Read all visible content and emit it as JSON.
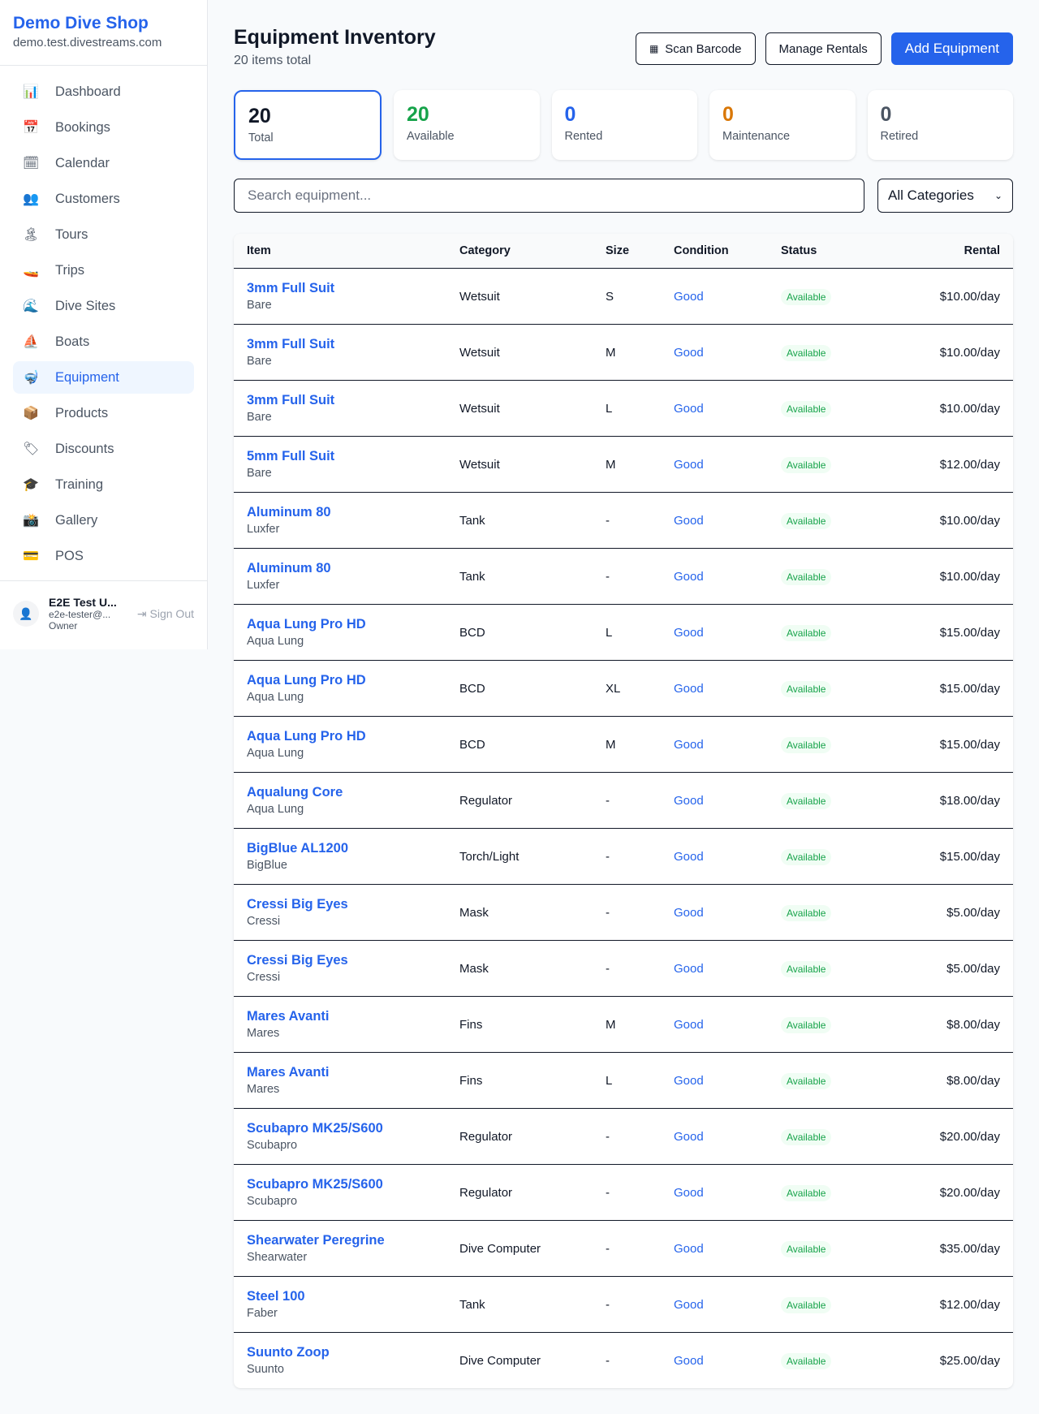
{
  "sidebar": {
    "brand": "Demo Dive Shop",
    "domain": "demo.test.divestreams.com",
    "items": [
      {
        "icon": "📊",
        "label": "Dashboard"
      },
      {
        "icon": "📅",
        "label": "Bookings"
      },
      {
        "icon": "🗓",
        "label": "Calendar"
      },
      {
        "icon": "👥",
        "label": "Customers"
      },
      {
        "icon": "🏝",
        "label": "Tours"
      },
      {
        "icon": "🚤",
        "label": "Trips"
      },
      {
        "icon": "🌊",
        "label": "Dive Sites"
      },
      {
        "icon": "⛵",
        "label": "Boats"
      },
      {
        "icon": "🤿",
        "label": "Equipment",
        "active": true
      },
      {
        "icon": "📦",
        "label": "Products"
      },
      {
        "icon": "🏷",
        "label": "Discounts"
      },
      {
        "icon": "🎓",
        "label": "Training"
      },
      {
        "icon": "📸",
        "label": "Gallery"
      },
      {
        "icon": "💳",
        "label": "POS"
      }
    ],
    "user": {
      "name": "E2E Test U...",
      "email": "e2e-tester@...",
      "role": "Owner",
      "sign_out": "Sign Out"
    }
  },
  "header": {
    "title": "Equipment Inventory",
    "subtitle": "20 items total",
    "scan": "Scan Barcode",
    "manage": "Manage Rentals",
    "add": "Add Equipment"
  },
  "stats": [
    {
      "value": "20",
      "label": "Total",
      "color": "#111827"
    },
    {
      "value": "20",
      "label": "Available",
      "color": "#16a34a"
    },
    {
      "value": "0",
      "label": "Rented",
      "color": "#2563eb"
    },
    {
      "value": "0",
      "label": "Maintenance",
      "color": "#d97706"
    },
    {
      "value": "0",
      "label": "Retired",
      "color": "#4b5563"
    }
  ],
  "filters": {
    "search_placeholder": "Search equipment...",
    "category": "All Categories"
  },
  "table": {
    "headers": [
      "Item",
      "Category",
      "Size",
      "Condition",
      "Status",
      "Rental"
    ],
    "rows": [
      [
        "3mm Full Suit",
        "Bare",
        "Wetsuit",
        "S",
        "Good",
        "Available",
        "$10.00/day"
      ],
      [
        "3mm Full Suit",
        "Bare",
        "Wetsuit",
        "M",
        "Good",
        "Available",
        "$10.00/day"
      ],
      [
        "3mm Full Suit",
        "Bare",
        "Wetsuit",
        "L",
        "Good",
        "Available",
        "$10.00/day"
      ],
      [
        "5mm Full Suit",
        "Bare",
        "Wetsuit",
        "M",
        "Good",
        "Available",
        "$12.00/day"
      ],
      [
        "Aluminum 80",
        "Luxfer",
        "Tank",
        "-",
        "Good",
        "Available",
        "$10.00/day"
      ],
      [
        "Aluminum 80",
        "Luxfer",
        "Tank",
        "-",
        "Good",
        "Available",
        "$10.00/day"
      ],
      [
        "Aqua Lung Pro HD",
        "Aqua Lung",
        "BCD",
        "L",
        "Good",
        "Available",
        "$15.00/day"
      ],
      [
        "Aqua Lung Pro HD",
        "Aqua Lung",
        "BCD",
        "XL",
        "Good",
        "Available",
        "$15.00/day"
      ],
      [
        "Aqua Lung Pro HD",
        "Aqua Lung",
        "BCD",
        "M",
        "Good",
        "Available",
        "$15.00/day"
      ],
      [
        "Aqualung Core",
        "Aqua Lung",
        "Regulator",
        "-",
        "Good",
        "Available",
        "$18.00/day"
      ],
      [
        "BigBlue AL1200",
        "BigBlue",
        "Torch/Light",
        "-",
        "Good",
        "Available",
        "$15.00/day"
      ],
      [
        "Cressi Big Eyes",
        "Cressi",
        "Mask",
        "-",
        "Good",
        "Available",
        "$5.00/day"
      ],
      [
        "Cressi Big Eyes",
        "Cressi",
        "Mask",
        "-",
        "Good",
        "Available",
        "$5.00/day"
      ],
      [
        "Mares Avanti",
        "Mares",
        "Fins",
        "M",
        "Good",
        "Available",
        "$8.00/day"
      ],
      [
        "Mares Avanti",
        "Mares",
        "Fins",
        "L",
        "Good",
        "Available",
        "$8.00/day"
      ],
      [
        "Scubapro MK25/S600",
        "Scubapro",
        "Regulator",
        "-",
        "Good",
        "Available",
        "$20.00/day"
      ],
      [
        "Scubapro MK25/S600",
        "Scubapro",
        "Regulator",
        "-",
        "Good",
        "Available",
        "$20.00/day"
      ],
      [
        "Shearwater Peregrine",
        "Shearwater",
        "Dive Computer",
        "-",
        "Good",
        "Available",
        "$35.00/day"
      ],
      [
        "Steel 100",
        "Faber",
        "Tank",
        "-",
        "Good",
        "Available",
        "$12.00/day"
      ],
      [
        "Suunto Zoop",
        "Suunto",
        "Dive Computer",
        "-",
        "Good",
        "Available",
        "$25.00/day"
      ]
    ]
  }
}
